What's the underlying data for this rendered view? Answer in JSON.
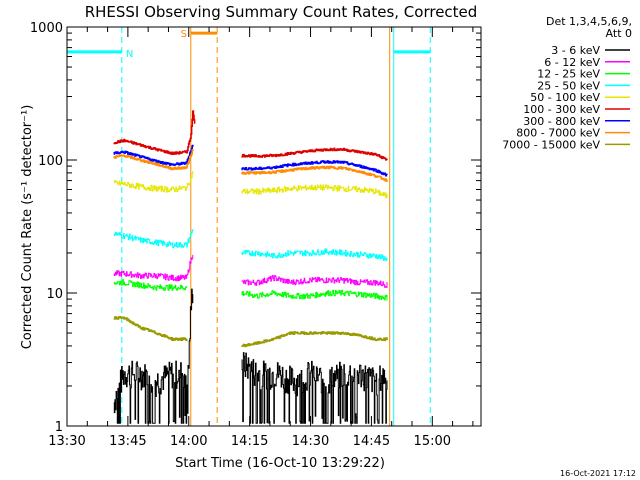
{
  "chart_data": {
    "type": "line",
    "title": "RHESSI Observing Summary Count Rates, Corrected",
    "xlabel": "Start Time (16-Oct-10 13:29:22)",
    "ylabel": "Corrected Count Rate (s⁻¹ detector⁻¹)",
    "xlim_minutes_after_1330": [
      0,
      102
    ],
    "ylim": [
      1,
      1000
    ],
    "yscale": "log",
    "x_ticks": [
      {
        "label": "13:30",
        "t": 0
      },
      {
        "label": "13:45",
        "t": 15
      },
      {
        "label": "14:00",
        "t": 30
      },
      {
        "label": "14:15",
        "t": 45
      },
      {
        "label": "14:30",
        "t": 60
      },
      {
        "label": "14:45",
        "t": 75
      },
      {
        "label": "15:00",
        "t": 90
      }
    ],
    "y_ticks": [
      {
        "label": "1",
        "v": 1
      },
      {
        "label": "10",
        "v": 10
      },
      {
        "label": "100",
        "v": 100
      },
      {
        "label": "1000",
        "v": 1000
      }
    ],
    "legend": {
      "placement": "top-right",
      "header1": "Det 1,3,4,5,6,9,",
      "header2": "Att 0"
    },
    "series": [
      {
        "name": "3 - 6 keV",
        "color": "#000000",
        "values": [
          [
            11.5,
            1.5
          ],
          [
            14,
            2.5
          ],
          [
            18,
            2.5
          ],
          [
            22,
            2.2
          ],
          [
            26,
            2.5
          ],
          [
            29.5,
            2.5
          ],
          [
            30,
            3
          ],
          [
            31,
            12
          ],
          [
            43,
            3
          ],
          [
            47,
            2.5
          ],
          [
            52,
            2.5
          ],
          [
            56,
            2.2
          ],
          [
            60,
            2.5
          ],
          [
            64,
            2.2
          ],
          [
            68,
            2.5
          ],
          [
            72,
            2.5
          ],
          [
            76,
            2.2
          ],
          [
            79,
            2.5
          ]
        ]
      },
      {
        "name": "6 - 12 keV",
        "color": "#ff00ff",
        "values": [
          [
            11.5,
            14
          ],
          [
            14,
            14
          ],
          [
            18,
            13.5
          ],
          [
            22,
            13.5
          ],
          [
            26,
            13
          ],
          [
            29.5,
            13
          ],
          [
            31,
            20
          ],
          [
            43,
            12
          ],
          [
            47,
            12
          ],
          [
            51,
            13
          ],
          [
            55,
            12
          ],
          [
            60,
            12.5
          ],
          [
            64,
            12.5
          ],
          [
            68,
            12.5
          ],
          [
            72,
            12
          ],
          [
            76,
            12
          ],
          [
            79,
            11.5
          ]
        ]
      },
      {
        "name": "12 - 25 keV",
        "color": "#00ff00",
        "values": [
          [
            11.5,
            12
          ],
          [
            14,
            12
          ],
          [
            18,
            11.5
          ],
          [
            22,
            11
          ],
          [
            26,
            11
          ],
          [
            29.5,
            11
          ],
          [
            43,
            10
          ],
          [
            47,
            9.5
          ],
          [
            51,
            10
          ],
          [
            55,
            9.5
          ],
          [
            60,
            9.5
          ],
          [
            64,
            10
          ],
          [
            68,
            10
          ],
          [
            72,
            9.8
          ],
          [
            76,
            9.5
          ],
          [
            79,
            9.2
          ]
        ]
      },
      {
        "name": "25 - 50 keV",
        "color": "#00ffff",
        "values": [
          [
            11.5,
            28
          ],
          [
            14,
            27
          ],
          [
            18,
            25
          ],
          [
            22,
            24
          ],
          [
            26,
            23
          ],
          [
            29.5,
            23
          ],
          [
            31,
            30
          ],
          [
            43,
            20
          ],
          [
            47,
            20
          ],
          [
            51,
            19
          ],
          [
            55,
            20
          ],
          [
            60,
            20
          ],
          [
            64,
            20.5
          ],
          [
            68,
            20
          ],
          [
            72,
            19.5
          ],
          [
            76,
            19
          ],
          [
            79,
            18
          ]
        ]
      },
      {
        "name": "50 - 100 keV",
        "color": "#e6e600",
        "values": [
          [
            11.5,
            67
          ],
          [
            14,
            66
          ],
          [
            18,
            63
          ],
          [
            22,
            61
          ],
          [
            26,
            60
          ],
          [
            29.5,
            62
          ],
          [
            31,
            80
          ],
          [
            43,
            58
          ],
          [
            47,
            58
          ],
          [
            51,
            59
          ],
          [
            55,
            61
          ],
          [
            60,
            62
          ],
          [
            64,
            62
          ],
          [
            68,
            61
          ],
          [
            72,
            60
          ],
          [
            76,
            58
          ],
          [
            79,
            53
          ]
        ]
      },
      {
        "name": "100 - 300 keV",
        "color": "#dd0000",
        "values": [
          [
            11.5,
            135
          ],
          [
            14,
            140
          ],
          [
            18,
            130
          ],
          [
            22,
            120
          ],
          [
            26,
            112
          ],
          [
            29.5,
            115
          ],
          [
            30.5,
            150
          ],
          [
            31,
            230
          ],
          [
            31.5,
            180
          ],
          [
            43,
            108
          ],
          [
            47,
            107
          ],
          [
            51,
            108
          ],
          [
            55,
            112
          ],
          [
            60,
            117
          ],
          [
            64,
            120
          ],
          [
            68,
            120
          ],
          [
            72,
            115
          ],
          [
            76,
            110
          ],
          [
            79,
            100
          ]
        ]
      },
      {
        "name": "300 - 800 keV",
        "color": "#0000ff",
        "values": [
          [
            11.5,
            112
          ],
          [
            14,
            115
          ],
          [
            18,
            106
          ],
          [
            22,
            98
          ],
          [
            26,
            92
          ],
          [
            29.5,
            95
          ],
          [
            31,
            130
          ],
          [
            43,
            86
          ],
          [
            47,
            86
          ],
          [
            51,
            88
          ],
          [
            55,
            92
          ],
          [
            60,
            95
          ],
          [
            64,
            97
          ],
          [
            68,
            96
          ],
          [
            72,
            90
          ],
          [
            76,
            84
          ],
          [
            79,
            76
          ]
        ]
      },
      {
        "name": "800 - 7000 keV",
        "color": "#ff8c00",
        "values": [
          [
            11.5,
            105
          ],
          [
            14,
            108
          ],
          [
            18,
            100
          ],
          [
            22,
            93
          ],
          [
            26,
            86
          ],
          [
            29.5,
            88
          ],
          [
            31,
            120
          ],
          [
            43,
            80
          ],
          [
            47,
            80
          ],
          [
            51,
            81
          ],
          [
            55,
            84
          ],
          [
            60,
            87
          ],
          [
            64,
            88
          ],
          [
            68,
            87
          ],
          [
            72,
            82
          ],
          [
            76,
            76
          ],
          [
            79,
            70
          ]
        ]
      },
      {
        "name": "7000 - 15000 keV",
        "color": "#999900",
        "values": [
          [
            11.5,
            6.5
          ],
          [
            14,
            6.5
          ],
          [
            18,
            5.5
          ],
          [
            22,
            5
          ],
          [
            26,
            4.5
          ],
          [
            29.5,
            4.5
          ],
          [
            43,
            4
          ],
          [
            47,
            4.2
          ],
          [
            51,
            4.5
          ],
          [
            55,
            5
          ],
          [
            60,
            5
          ],
          [
            64,
            5
          ],
          [
            68,
            5
          ],
          [
            72,
            4.8
          ],
          [
            76,
            4.5
          ],
          [
            79,
            4.5
          ]
        ]
      }
    ],
    "annotations": {
      "night_label": "N",
      "saa_label": "S",
      "night_bars": [
        [
          0,
          13.5
        ],
        [
          80.5,
          89.5
        ]
      ],
      "night_bar_color": "#00ffff",
      "saa_bar": [
        30.5,
        37
      ],
      "saa_bar_color": "#ff8c00",
      "cyan_dashed_lines": [
        13.5,
        89.5
      ],
      "cyan_solid_lines": [
        0,
        80.5
      ],
      "orange_dashed_lines": [
        37
      ],
      "orange_solid_lines": [
        30.5,
        79.5
      ]
    },
    "footer_date": "16-Oct-2021 17:12"
  }
}
